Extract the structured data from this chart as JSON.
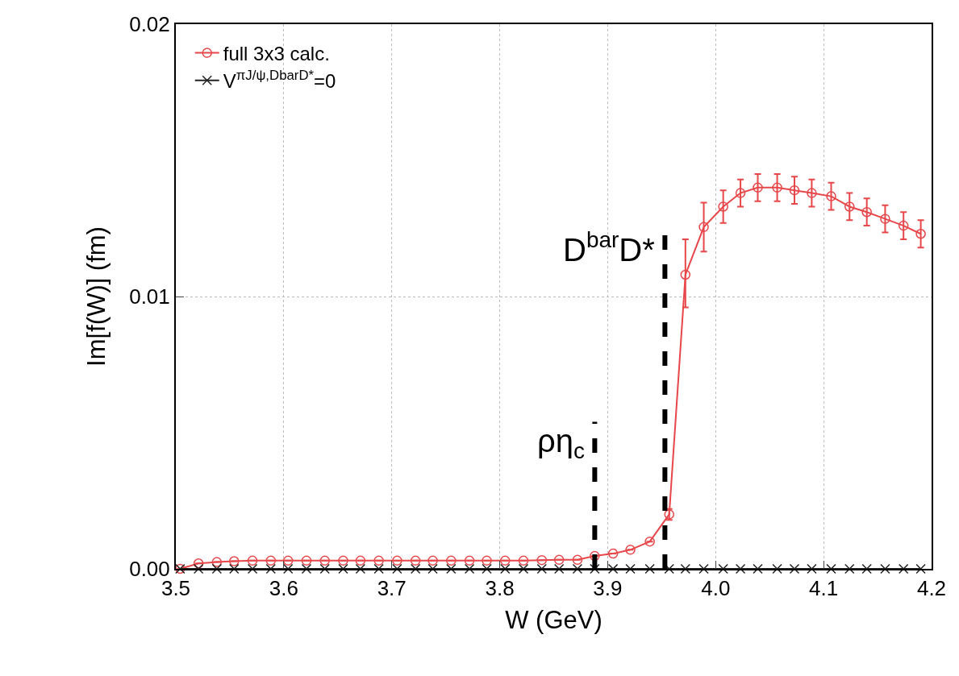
{
  "chart_data": {
    "type": "line",
    "xlabel": "W (GeV)",
    "ylabel": "Im[f(W)] (fm)",
    "x": [
      3.504,
      3.521,
      3.538,
      3.554,
      3.571,
      3.588,
      3.604,
      3.621,
      3.638,
      3.655,
      3.671,
      3.688,
      3.705,
      3.722,
      3.738,
      3.755,
      3.772,
      3.788,
      3.805,
      3.822,
      3.839,
      3.855,
      3.872,
      3.888,
      3.905,
      3.921,
      3.939,
      3.957,
      3.972,
      3.989,
      4.007,
      4.023,
      4.039,
      4.057,
      4.073,
      4.089,
      4.107,
      4.124,
      4.14,
      4.157,
      4.174,
      4.19
    ],
    "series": [
      {
        "name": "full 3x3 calc.",
        "color": "#e8474a",
        "marker": "circle",
        "values": [
          0,
          0.0002,
          0.00025,
          0.00028,
          0.0003,
          0.0003,
          0.0003,
          0.0003,
          0.0003,
          0.0003,
          0.0003,
          0.0003,
          0.0003,
          0.0003,
          0.0003,
          0.0003,
          0.0003,
          0.0003,
          0.0003,
          0.0003,
          0.00032,
          0.00033,
          0.00033,
          0.00047,
          0.00056,
          0.0007,
          0.001,
          0.002,
          0.0108,
          0.01255,
          0.0133,
          0.0138,
          0.014,
          0.014,
          0.0139,
          0.0138,
          0.01368,
          0.0133,
          0.0131,
          0.01285,
          0.0126,
          0.0123
        ],
        "errors": [
          null,
          null,
          null,
          null,
          null,
          null,
          null,
          null,
          null,
          null,
          null,
          null,
          null,
          null,
          null,
          null,
          null,
          null,
          null,
          null,
          null,
          null,
          null,
          null,
          null,
          null,
          null,
          0.0002,
          [
            0.0096,
            0.0121
          ],
          0.0009,
          0.0006,
          0.0005,
          0.0005,
          0.0005,
          0.0005,
          0.0005,
          0.0005,
          0.0005,
          0.0005,
          0.0005,
          0.0005,
          0.0005
        ]
      },
      {
        "name": "V$^{πJ/ψ,DbarD*}$=0",
        "color": "#222222",
        "marker": "cross",
        "values": [
          0,
          0,
          0,
          0,
          0,
          0,
          0,
          0,
          0,
          0,
          0,
          0,
          0,
          0,
          0,
          0,
          0,
          0,
          0,
          0,
          0,
          0,
          0,
          0,
          0,
          0,
          0,
          0,
          0,
          0,
          0,
          0,
          0,
          0,
          0,
          0,
          0,
          0,
          0,
          0,
          0,
          0
        ]
      }
    ],
    "xlim": [
      3.5,
      4.2
    ],
    "xticks": [
      3.5,
      3.6,
      3.7,
      3.8,
      3.9,
      {
        "value": 4,
        "label": "4.0"
      },
      4.1,
      4.2
    ],
    "ylim": [
      0,
      0.02
    ],
    "yticks": [
      {
        "value": 0,
        "label": "0.00"
      },
      0.01,
      0.02
    ],
    "grid": true,
    "legend": "top left",
    "line_style": "solid",
    "ref_lines": [
      {
        "axis": "x",
        "value": 3.888,
        "label": "ρη$_{c}$",
        "color": "#000000",
        "line_style": "dashed"
      },
      {
        "axis": "x",
        "value": 3.953,
        "label": "D$^{bar}$D*",
        "color": "#000000",
        "line_style": "dashed"
      }
    ]
  }
}
